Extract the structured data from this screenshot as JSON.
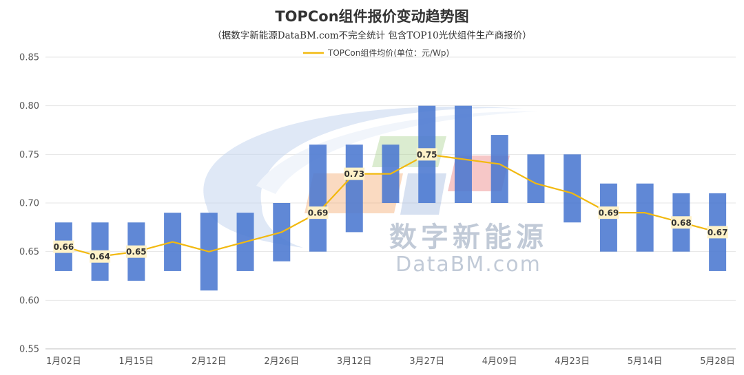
{
  "watermark": {
    "cn": "数字新能源",
    "en": "DataBM.com"
  },
  "colors": {
    "bar": "#4a78d0",
    "line": "#f2b90f",
    "label_bg": "#fff2c8",
    "grid": "#e4e4e4"
  },
  "chart_data": {
    "type": "bar",
    "title": "TOPCon组件报价变动趋势图",
    "subtitle": "（据数字新能源DataBM.com不完全统计 包含TOP10光伏组件生产商报价）",
    "legend": {
      "label": "TOPCon组件均价(单位：元/Wp)",
      "position": "top"
    },
    "ylim": [
      0.55,
      0.85
    ],
    "yticks": [
      "0.55",
      "0.60",
      "0.65",
      "0.70",
      "0.75",
      "0.80",
      "0.85"
    ],
    "grid": true,
    "categories": [
      "1月02日",
      "",
      "1月15日",
      "",
      "2月12日",
      "",
      "2月26日",
      "",
      "3月12日",
      "",
      "3月27日",
      "",
      "4月09日",
      "",
      "4月23日",
      "",
      "5月14日",
      "",
      "5月28日"
    ],
    "range_low": [
      0.63,
      0.62,
      0.62,
      0.63,
      0.61,
      0.63,
      0.64,
      0.65,
      0.67,
      0.7,
      0.7,
      0.7,
      0.7,
      0.7,
      0.68,
      0.65,
      0.65,
      0.65,
      0.63
    ],
    "range_high": [
      0.68,
      0.68,
      0.68,
      0.69,
      0.69,
      0.69,
      0.7,
      0.76,
      0.76,
      0.76,
      0.8,
      0.8,
      0.77,
      0.75,
      0.75,
      0.72,
      0.72,
      0.71,
      0.71
    ],
    "series": [
      {
        "name": "TOPCon组件均价(单位：元/Wp)",
        "values": [
          0.655,
          0.645,
          0.65,
          0.66,
          0.65,
          0.66,
          0.67,
          0.69,
          0.73,
          0.73,
          0.75,
          0.745,
          0.74,
          0.72,
          0.71,
          0.69,
          0.69,
          0.68,
          0.67
        ]
      }
    ],
    "data_labels": [
      "0.66",
      "0.64",
      "0.65",
      "",
      "",
      "",
      "",
      "0.69",
      "0.73",
      "",
      "0.75",
      "",
      "",
      "",
      "",
      "0.69",
      "",
      "0.68",
      "0.67"
    ]
  }
}
